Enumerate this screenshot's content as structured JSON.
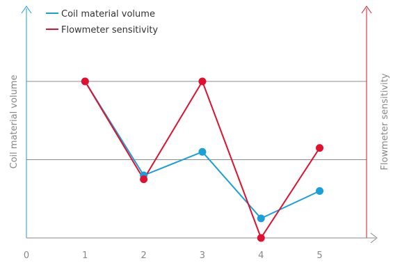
{
  "chart_data": {
    "type": "line",
    "x": [
      1,
      2,
      3,
      4,
      5
    ],
    "xlim": [
      0,
      5.8
    ],
    "x_ticks": [
      "0",
      "1",
      "2",
      "3",
      "4",
      "5"
    ],
    "ylabel_left": "Coil material volume",
    "ylabel_right": "Flowmeter sensitivity",
    "grid": "horizontal",
    "legend_position": "top-left",
    "series": [
      {
        "name": "Coil material volume",
        "axis": "left",
        "color": "#1a9fd9",
        "values": [
          4.0,
          1.6,
          2.2,
          0.5,
          1.2
        ]
      },
      {
        "name": "Flowmeter sensitivity",
        "axis": "right",
        "color": "#e0102e",
        "values": [
          4.0,
          1.5,
          4.0,
          0.0,
          2.3
        ]
      }
    ],
    "ylim": [
      0,
      4.0
    ]
  }
}
